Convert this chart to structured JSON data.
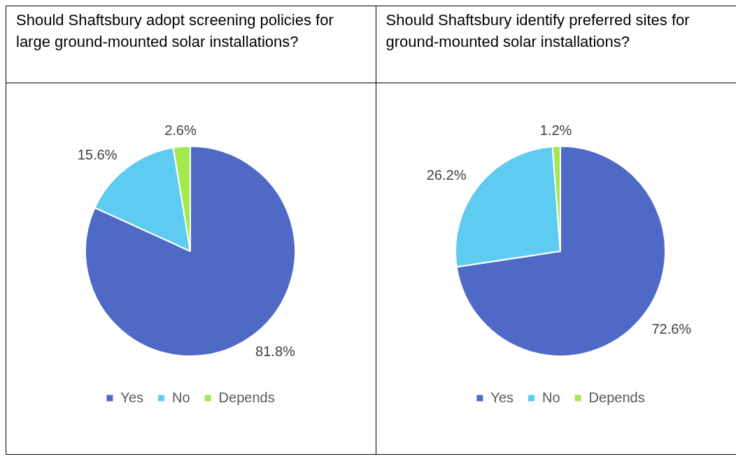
{
  "chart_data": [
    {
      "type": "pie",
      "title": "Should Shaftsbury adopt screening policies for large ground-mounted solar installations?",
      "categories": [
        "Yes",
        "No",
        "Depends"
      ],
      "values": [
        81.8,
        15.6,
        2.6
      ],
      "colors": [
        "#4f69c6",
        "#5ecbf0",
        "#a5e84e"
      ],
      "value_labels": [
        "81.8%",
        "15.6%",
        "2.6%"
      ],
      "legend": "bottom"
    },
    {
      "type": "pie",
      "title": "Should Shaftsbury identify preferred sites for ground-mounted solar installations?",
      "categories": [
        "Yes",
        "No",
        "Depends"
      ],
      "values": [
        72.6,
        26.2,
        1.2
      ],
      "colors": [
        "#4f69c6",
        "#5ecbf0",
        "#a5e84e"
      ],
      "value_labels": [
        "72.6%",
        "26.2%",
        "1.2%"
      ],
      "legend": "bottom"
    }
  ]
}
